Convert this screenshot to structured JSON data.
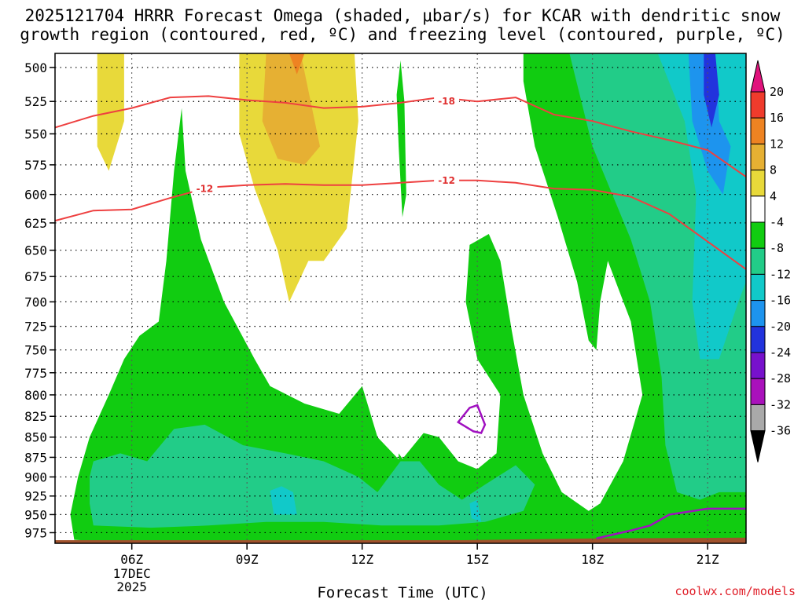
{
  "title_line1": "2025121704 HRRR Forecast Omega (shaded, μbar/s) for KCAR with dendritic snow",
  "title_line2": "growth region (contoured, red, ºC) and freezing level (contoured, purple, ºC)",
  "credit": "coolwx.com/models",
  "colors": {
    "pink": "#e0127c",
    "red": "#ef3b2c",
    "orange": "#ee8322",
    "gold": "#e6b033",
    "yellow": "#e8d93a",
    "white": "#ffffff",
    "green": "#11cc11",
    "sea": "#22cc88",
    "teal": "#11c9c9",
    "blue": "#1d94ee",
    "navy": "#2233dd",
    "violet": "#7711cc",
    "purple": "#a911bb",
    "gray": "#a9a9a9",
    "black": "#000000",
    "ground": "#a0522d",
    "contour_red": "#ee4040",
    "freezing": "#a010c0"
  },
  "chart_data": {
    "type": "heatmap",
    "title": "2025121704 HRRR Forecast Omega (shaded, μbar/s) for KCAR with dendritic snow growth region (contoured, red, ºC) and freezing level (contoured, purple, ºC)",
    "xlabel": "Forecast Time (UTC)",
    "ylabel": "",
    "x_ticks": [
      "06Z",
      "09Z",
      "12Z",
      "15Z",
      "18Z",
      "21Z"
    ],
    "x_tick_hours": [
      6,
      9,
      12,
      15,
      18,
      21
    ],
    "x_date_label": [
      "17DEC",
      "2025"
    ],
    "xlim": [
      4.0,
      22.0
    ],
    "y_ticks": [
      500,
      525,
      550,
      575,
      600,
      625,
      650,
      675,
      700,
      725,
      750,
      775,
      800,
      825,
      850,
      875,
      900,
      925,
      950,
      975
    ],
    "ylim": [
      990,
      490
    ],
    "y_log": true,
    "grid": true,
    "colorbar_levels": [
      20,
      16,
      12,
      8,
      4,
      -4,
      -8,
      -12,
      -16,
      -20,
      -24,
      -28,
      -32,
      -36
    ],
    "colorbar_colors": [
      "pink",
      "red",
      "orange",
      "gold",
      "yellow",
      "white",
      "green",
      "sea",
      "teal",
      "blue",
      "navy",
      "violet",
      "purple",
      "gray",
      "black"
    ],
    "contour_labels": [
      {
        "text": "-18",
        "hour": 14.2,
        "p": 525
      },
      {
        "text": "-12",
        "hour": 7.9,
        "p": 595
      },
      {
        "text": "-12",
        "hour": 14.2,
        "p": 588
      }
    ],
    "contour_minus18": [
      [
        4.0,
        545
      ],
      [
        5.0,
        536
      ],
      [
        6.0,
        530
      ],
      [
        7.0,
        522
      ],
      [
        8.0,
        521
      ],
      [
        9.0,
        524
      ],
      [
        10.0,
        526
      ],
      [
        11.0,
        530
      ],
      [
        12.0,
        529
      ],
      [
        13.0,
        526
      ],
      [
        14.0,
        522
      ],
      [
        15.0,
        525
      ],
      [
        16.0,
        522
      ],
      [
        17.0,
        535
      ],
      [
        18.0,
        540
      ],
      [
        19.0,
        548
      ],
      [
        20.0,
        555
      ],
      [
        21.0,
        563
      ],
      [
        22.0,
        585
      ]
    ],
    "contour_minus12": [
      [
        4.0,
        623
      ],
      [
        5.0,
        614
      ],
      [
        6.0,
        613
      ],
      [
        7.0,
        603
      ],
      [
        8.0,
        594
      ],
      [
        9.0,
        592
      ],
      [
        10.0,
        591
      ],
      [
        11.0,
        592
      ],
      [
        12.0,
        592
      ],
      [
        13.0,
        590
      ],
      [
        14.0,
        588
      ],
      [
        15.0,
        588
      ],
      [
        16.0,
        590
      ],
      [
        17.0,
        595
      ],
      [
        18.0,
        596
      ],
      [
        19.0,
        602
      ],
      [
        20.0,
        617
      ],
      [
        21.0,
        642
      ],
      [
        22.0,
        668
      ]
    ],
    "freezing_level_contours": [
      [
        [
          14.5,
          832
        ],
        [
          14.8,
          815
        ],
        [
          15.0,
          812
        ],
        [
          15.2,
          835
        ],
        [
          15.1,
          845
        ],
        [
          14.9,
          843
        ]
      ],
      [
        [
          18.1,
          983
        ],
        [
          19.0,
          972
        ],
        [
          19.5,
          965
        ],
        [
          20.0,
          950
        ],
        [
          21.0,
          942
        ],
        [
          22.0,
          942
        ]
      ]
    ]
  }
}
